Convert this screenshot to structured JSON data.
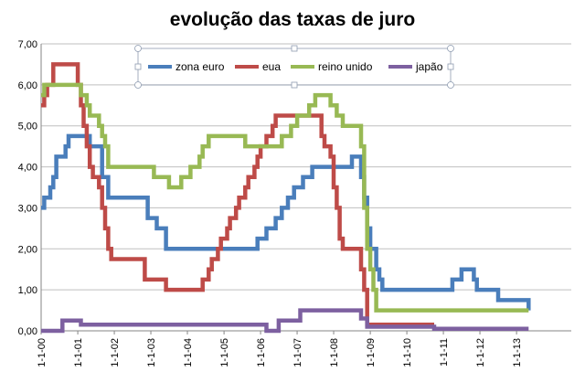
{
  "chart_data": {
    "type": "line",
    "title": "evolução das taxas de juro",
    "xlabel": "",
    "ylabel": "",
    "ylim": [
      0,
      7
    ],
    "grid": "horizontal",
    "legend_position": "top",
    "y_ticks": [
      "0,00",
      "1,00",
      "2,00",
      "3,00",
      "4,00",
      "5,00",
      "6,00",
      "7,00"
    ],
    "x_ticks": [
      "1-1-00",
      "1-1-01",
      "1-1-02",
      "1-1-03",
      "1-1-04",
      "1-1-05",
      "1-1-06",
      "1-1-07",
      "1-1-08",
      "1-1-09",
      "1-1-10",
      "1-1-11",
      "1-1-12",
      "1-1-13"
    ],
    "x_range": [
      "2000-01-01",
      "2013-12-31"
    ],
    "series": [
      {
        "name": "zona euro",
        "color": "#4a7ebb",
        "points": [
          [
            "2000-01-01",
            3.0
          ],
          [
            "2000-02-01",
            3.25
          ],
          [
            "2000-04-01",
            3.5
          ],
          [
            "2000-05-01",
            3.75
          ],
          [
            "2000-06-01",
            4.25
          ],
          [
            "2000-09-01",
            4.5
          ],
          [
            "2000-10-01",
            4.75
          ],
          [
            "2001-05-01",
            4.5
          ],
          [
            "2001-09-01",
            3.75
          ],
          [
            "2001-11-01",
            3.25
          ],
          [
            "2002-12-01",
            2.75
          ],
          [
            "2003-03-01",
            2.5
          ],
          [
            "2003-06-01",
            2.0
          ],
          [
            "2005-12-01",
            2.25
          ],
          [
            "2006-03-01",
            2.5
          ],
          [
            "2006-06-01",
            2.75
          ],
          [
            "2006-08-01",
            3.0
          ],
          [
            "2006-10-01",
            3.25
          ],
          [
            "2006-12-01",
            3.5
          ],
          [
            "2007-03-01",
            3.75
          ],
          [
            "2007-06-01",
            4.0
          ],
          [
            "2008-07-01",
            4.25
          ],
          [
            "2008-10-01",
            3.75
          ],
          [
            "2008-11-01",
            3.25
          ],
          [
            "2008-12-01",
            2.5
          ],
          [
            "2009-01-01",
            2.0
          ],
          [
            "2009-03-01",
            1.5
          ],
          [
            "2009-04-01",
            1.25
          ],
          [
            "2009-05-01",
            1.0
          ],
          [
            "2011-04-01",
            1.25
          ],
          [
            "2011-07-01",
            1.5
          ],
          [
            "2011-11-01",
            1.25
          ],
          [
            "2011-12-01",
            1.0
          ],
          [
            "2012-07-01",
            0.75
          ],
          [
            "2013-05-01",
            0.5
          ]
        ]
      },
      {
        "name": "eua",
        "color": "#be4b48",
        "points": [
          [
            "2000-01-01",
            5.5
          ],
          [
            "2000-02-01",
            5.75
          ],
          [
            "2000-03-01",
            6.0
          ],
          [
            "2000-05-01",
            6.5
          ],
          [
            "2001-01-01",
            6.0
          ],
          [
            "2001-02-01",
            5.5
          ],
          [
            "2001-03-01",
            5.0
          ],
          [
            "2001-04-01",
            4.5
          ],
          [
            "2001-05-01",
            4.0
          ],
          [
            "2001-06-01",
            3.75
          ],
          [
            "2001-08-01",
            3.5
          ],
          [
            "2001-09-01",
            3.0
          ],
          [
            "2001-10-01",
            2.5
          ],
          [
            "2001-11-01",
            2.0
          ],
          [
            "2001-12-01",
            1.75
          ],
          [
            "2002-11-01",
            1.25
          ],
          [
            "2003-06-01",
            1.0
          ],
          [
            "2004-06-01",
            1.25
          ],
          [
            "2004-08-01",
            1.5
          ],
          [
            "2004-09-01",
            1.75
          ],
          [
            "2004-11-01",
            2.0
          ],
          [
            "2004-12-01",
            2.25
          ],
          [
            "2005-02-01",
            2.5
          ],
          [
            "2005-03-01",
            2.75
          ],
          [
            "2005-05-01",
            3.0
          ],
          [
            "2005-06-01",
            3.25
          ],
          [
            "2005-08-01",
            3.5
          ],
          [
            "2005-09-01",
            3.75
          ],
          [
            "2005-11-01",
            4.0
          ],
          [
            "2005-12-01",
            4.25
          ],
          [
            "2006-01-01",
            4.5
          ],
          [
            "2006-03-01",
            4.75
          ],
          [
            "2006-05-01",
            5.0
          ],
          [
            "2006-06-01",
            5.25
          ],
          [
            "2007-09-01",
            4.75
          ],
          [
            "2007-10-01",
            4.5
          ],
          [
            "2007-12-01",
            4.25
          ],
          [
            "2008-01-01",
            3.5
          ],
          [
            "2008-02-01",
            3.0
          ],
          [
            "2008-03-01",
            2.25
          ],
          [
            "2008-04-01",
            2.0
          ],
          [
            "2008-10-01",
            1.5
          ],
          [
            "2008-11-01",
            1.0
          ],
          [
            "2008-12-01",
            0.15
          ],
          [
            "2010-10-01",
            0.15
          ]
        ]
      },
      {
        "name": "reino unido",
        "color": "#98b954",
        "points": [
          [
            "2000-01-01",
            5.75
          ],
          [
            "2000-02-01",
            6.0
          ],
          [
            "2001-02-01",
            5.75
          ],
          [
            "2001-04-01",
            5.5
          ],
          [
            "2001-05-01",
            5.25
          ],
          [
            "2001-08-01",
            5.0
          ],
          [
            "2001-09-01",
            4.75
          ],
          [
            "2001-10-01",
            4.5
          ],
          [
            "2001-11-01",
            4.0
          ],
          [
            "2003-02-01",
            3.75
          ],
          [
            "2003-07-01",
            3.5
          ],
          [
            "2003-11-01",
            3.75
          ],
          [
            "2004-02-01",
            4.0
          ],
          [
            "2004-05-01",
            4.25
          ],
          [
            "2004-06-01",
            4.5
          ],
          [
            "2004-08-01",
            4.75
          ],
          [
            "2005-08-01",
            4.5
          ],
          [
            "2006-08-01",
            4.75
          ],
          [
            "2006-11-01",
            5.0
          ],
          [
            "2007-01-01",
            5.25
          ],
          [
            "2007-05-01",
            5.5
          ],
          [
            "2007-07-01",
            5.75
          ],
          [
            "2007-12-01",
            5.5
          ],
          [
            "2008-02-01",
            5.25
          ],
          [
            "2008-04-01",
            5.0
          ],
          [
            "2008-10-01",
            4.5
          ],
          [
            "2008-11-01",
            3.0
          ],
          [
            "2008-12-01",
            2.0
          ],
          [
            "2009-01-01",
            1.5
          ],
          [
            "2009-02-01",
            1.0
          ],
          [
            "2009-03-01",
            0.5
          ],
          [
            "2013-05-01",
            0.5
          ]
        ]
      },
      {
        "name": "japão",
        "color": "#7d60a0",
        "points": [
          [
            "2000-01-01",
            0.0
          ],
          [
            "2000-08-01",
            0.25
          ],
          [
            "2001-02-01",
            0.15
          ],
          [
            "2006-03-01",
            0.0
          ],
          [
            "2006-07-01",
            0.25
          ],
          [
            "2007-02-01",
            0.5
          ],
          [
            "2008-10-01",
            0.3
          ],
          [
            "2008-12-01",
            0.1
          ],
          [
            "2010-10-01",
            0.05
          ],
          [
            "2013-05-01",
            0.05
          ]
        ]
      }
    ]
  }
}
